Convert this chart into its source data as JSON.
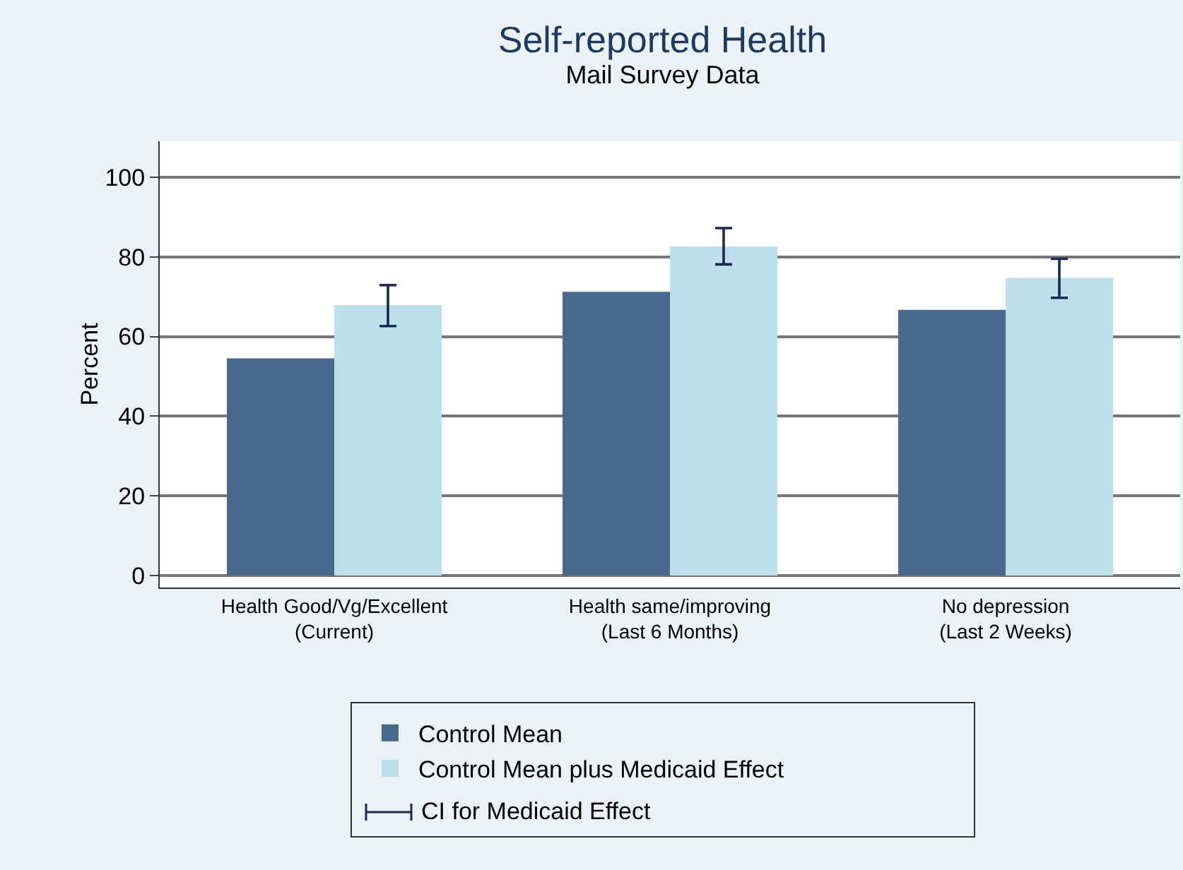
{
  "chart_data": {
    "type": "bar",
    "title": "Self-reported Health",
    "subtitle": "Mail Survey Data",
    "ylabel": "Percent",
    "categories": [
      "Health Good/Vg/Excellent\n(Current)",
      "Health same/improving\n(Last 6 Months)",
      "No depression\n(Last 2 Weeks)"
    ],
    "series": [
      {
        "name": "Control Mean",
        "color": "#48698b",
        "values": [
          54.5,
          71.2,
          66.7
        ]
      },
      {
        "name": "Control Mean plus Medicaid Effect",
        "color": "#bcdfea",
        "values": [
          67.9,
          82.6,
          74.7
        ],
        "errors": [
          [
            62.6,
            72.9
          ],
          [
            78.1,
            87.2
          ],
          [
            69.7,
            79.5
          ]
        ]
      }
    ],
    "ylim": [
      -3,
      109
    ],
    "yticks": [
      0,
      20,
      40,
      60,
      80,
      100
    ],
    "grid": "y",
    "legend": "bottom",
    "annotations": [
      "CI for Medicaid Effect"
    ]
  }
}
